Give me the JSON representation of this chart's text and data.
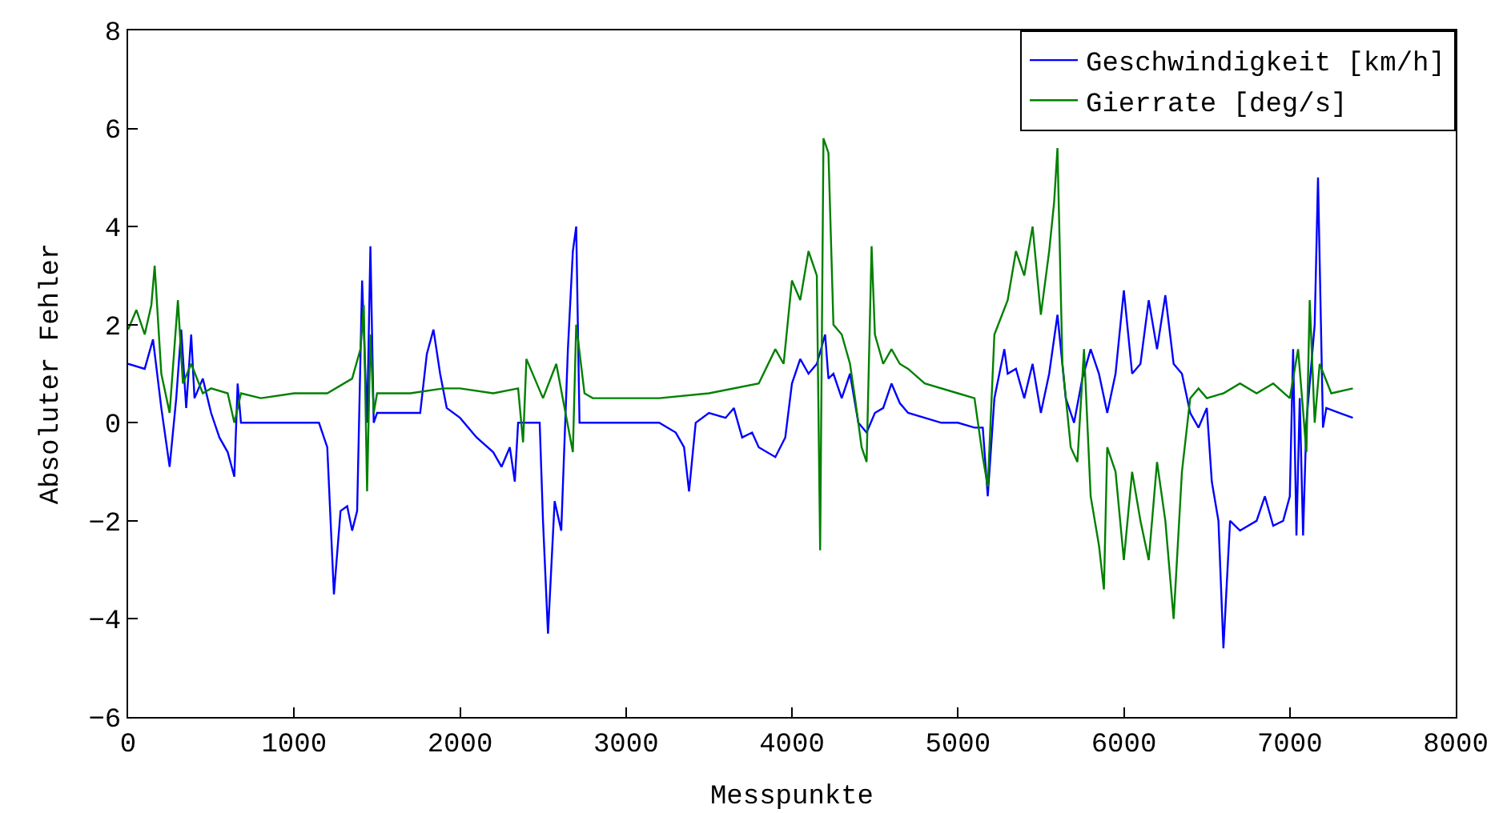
{
  "chart_data": {
    "type": "line",
    "xlabel": "Messpunkte",
    "ylabel": "Absoluter Fehler",
    "xlim": [
      0,
      8000
    ],
    "xticks": [
      0,
      1000,
      2000,
      3000,
      4000,
      5000,
      6000,
      7000,
      8000
    ],
    "ylim": [
      -6,
      8
    ],
    "yticks": [
      -6,
      -4,
      -2,
      0,
      2,
      4,
      6,
      8
    ],
    "grid": false,
    "legend": "top right",
    "marker": "none",
    "line_style": "solid",
    "series": [
      {
        "name": "Geschwindigkeit [km/h]",
        "color": "#0000ff",
        "x": [
          0,
          100,
          150,
          200,
          250,
          290,
          320,
          350,
          380,
          400,
          450,
          500,
          550,
          600,
          640,
          660,
          680,
          1000,
          1150,
          1200,
          1240,
          1280,
          1320,
          1350,
          1380,
          1410,
          1440,
          1460,
          1480,
          1500,
          1700,
          1760,
          1800,
          1840,
          1880,
          1920,
          2000,
          2100,
          2200,
          2250,
          2300,
          2330,
          2350,
          2400,
          2480,
          2500,
          2530,
          2570,
          2610,
          2650,
          2680,
          2700,
          2720,
          2800,
          3200,
          3300,
          3350,
          3380,
          3420,
          3500,
          3600,
          3650,
          3700,
          3760,
          3800,
          3900,
          3960,
          4000,
          4050,
          4100,
          4150,
          4200,
          4220,
          4250,
          4300,
          4350,
          4400,
          4450,
          4500,
          4550,
          4600,
          4650,
          4700,
          4800,
          4900,
          5000,
          5100,
          5150,
          5180,
          5220,
          5280,
          5300,
          5350,
          5400,
          5450,
          5500,
          5550,
          5600,
          5650,
          5700,
          5750,
          5800,
          5850,
          5900,
          5950,
          6000,
          6050,
          6100,
          6150,
          6200,
          6250,
          6300,
          6350,
          6400,
          6450,
          6500,
          6530,
          6570,
          6600,
          6640,
          6700,
          6800,
          6850,
          6900,
          6960,
          7000,
          7020,
          7040,
          7060,
          7080,
          7100,
          7150,
          7170,
          7200,
          7220,
          7300,
          7380
        ],
        "values": [
          1.2,
          1.1,
          1.7,
          0.3,
          -0.9,
          0.5,
          1.9,
          0.3,
          1.8,
          0.5,
          0.9,
          0.2,
          -0.3,
          -0.6,
          -1.1,
          0.8,
          0.0,
          0.0,
          0.0,
          -0.5,
          -3.5,
          -1.8,
          -1.7,
          -2.2,
          -1.8,
          2.9,
          0.0,
          3.6,
          0.0,
          0.2,
          0.2,
          0.2,
          1.4,
          1.9,
          1.0,
          0.3,
          0.1,
          -0.3,
          -0.6,
          -0.9,
          -0.5,
          -1.2,
          0.0,
          0.0,
          0.0,
          -2.0,
          -4.3,
          -1.6,
          -2.2,
          1.5,
          3.5,
          4.0,
          0.0,
          0.0,
          0.0,
          -0.2,
          -0.5,
          -1.4,
          0.0,
          0.2,
          0.1,
          0.3,
          -0.3,
          -0.2,
          -0.5,
          -0.7,
          -0.3,
          0.8,
          1.3,
          1.0,
          1.2,
          1.8,
          0.9,
          1.0,
          0.5,
          1.0,
          0.0,
          -0.2,
          0.2,
          0.3,
          0.8,
          0.4,
          0.2,
          0.1,
          0.0,
          0.0,
          -0.1,
          -0.1,
          -1.5,
          0.5,
          1.5,
          1.0,
          1.1,
          0.5,
          1.2,
          0.2,
          1.0,
          2.2,
          0.5,
          0.0,
          0.9,
          1.5,
          1.0,
          0.2,
          1.0,
          2.7,
          1.0,
          1.2,
          2.5,
          1.5,
          2.6,
          1.2,
          1.0,
          0.2,
          -0.1,
          0.3,
          -1.2,
          -2.0,
          -4.6,
          -2.0,
          -2.2,
          -2.0,
          -1.5,
          -2.1,
          -2.0,
          -1.5,
          1.5,
          -2.3,
          0.5,
          -2.3,
          0.0,
          2.0,
          5.0,
          -0.1,
          0.3,
          0.2,
          0.1
        ]
      },
      {
        "name": "Gierrate [deg/s]",
        "color": "#008000",
        "x": [
          0,
          50,
          100,
          140,
          160,
          200,
          250,
          300,
          330,
          380,
          450,
          500,
          600,
          640,
          680,
          800,
          1000,
          1200,
          1350,
          1400,
          1420,
          1440,
          1460,
          1480,
          1500,
          1700,
          1900,
          2000,
          2200,
          2350,
          2380,
          2400,
          2500,
          2580,
          2680,
          2700,
          2750,
          2800,
          3200,
          3500,
          3800,
          3900,
          3950,
          4000,
          4050,
          4100,
          4150,
          4170,
          4190,
          4220,
          4250,
          4300,
          4350,
          4380,
          4420,
          4450,
          4480,
          4500,
          4550,
          4600,
          4650,
          4700,
          4800,
          5000,
          5100,
          5150,
          5180,
          5220,
          5300,
          5350,
          5400,
          5450,
          5500,
          5550,
          5580,
          5600,
          5630,
          5680,
          5720,
          5760,
          5800,
          5850,
          5880,
          5900,
          5950,
          6000,
          6050,
          6100,
          6150,
          6200,
          6250,
          6300,
          6350,
          6400,
          6450,
          6500,
          6600,
          6700,
          6800,
          6900,
          7000,
          7050,
          7100,
          7120,
          7150,
          7180,
          7250,
          7380
        ],
        "values": [
          1.9,
          2.3,
          1.8,
          2.4,
          3.2,
          1.0,
          0.2,
          2.5,
          0.8,
          1.2,
          0.6,
          0.7,
          0.6,
          0.0,
          0.6,
          0.5,
          0.6,
          0.6,
          0.9,
          1.5,
          2.4,
          -1.4,
          1.8,
          0.2,
          0.6,
          0.6,
          0.7,
          0.7,
          0.6,
          0.7,
          -0.4,
          1.3,
          0.5,
          1.2,
          -0.6,
          2.0,
          0.6,
          0.5,
          0.5,
          0.6,
          0.8,
          1.5,
          1.2,
          2.9,
          2.5,
          3.5,
          3.0,
          -2.6,
          5.8,
          5.5,
          2.0,
          1.8,
          1.2,
          0.5,
          -0.5,
          -0.8,
          3.6,
          1.8,
          1.2,
          1.5,
          1.2,
          1.1,
          0.8,
          0.6,
          0.5,
          -0.7,
          -1.3,
          1.8,
          2.5,
          3.5,
          3.0,
          4.0,
          2.2,
          3.5,
          4.5,
          5.6,
          1.2,
          -0.5,
          -0.8,
          1.5,
          -1.5,
          -2.5,
          -3.4,
          -0.5,
          -1.0,
          -2.8,
          -1.0,
          -2.0,
          -2.8,
          -0.8,
          -2.0,
          -4.0,
          -1.0,
          0.5,
          0.7,
          0.5,
          0.6,
          0.8,
          0.6,
          0.8,
          0.5,
          1.5,
          -0.6,
          2.5,
          0.0,
          1.2,
          0.6,
          0.7
        ]
      }
    ]
  }
}
